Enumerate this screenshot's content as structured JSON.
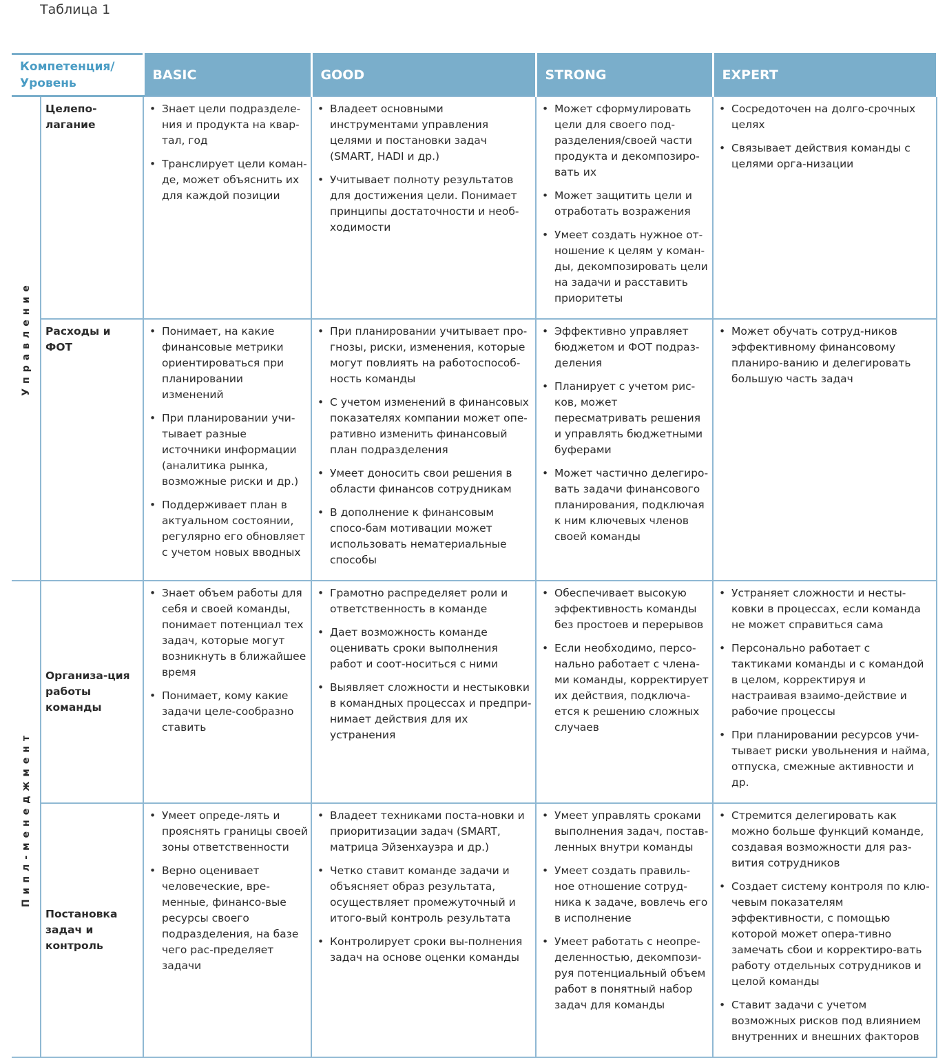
{
  "title": "Таблица 1",
  "header": {
    "corner": "Компетенция/ Уровень",
    "levels": [
      "BASIC",
      "GOOD",
      "STRONG",
      "EXPERT"
    ]
  },
  "groups": [
    {
      "label": "Управление"
    },
    {
      "label": "Пипл-менеджмент"
    }
  ],
  "rows": [
    {
      "label": "Целепо-лагание",
      "cells": [
        [
          "Знает цели подразделе-ния и продукта на квар-тал, год",
          "Транслирует цели коман-де, может объяснить их для каждой позиции"
        ],
        [
          "Владеет основными инструментами управления целями и постановки задач (SMART, HADI и др.)",
          "Учитывает полноту результатов для достижения цели. Понимает принципы достаточности и необ-ходимости"
        ],
        [
          "Может сформулировать цели для своего под-разделения/своей части продукта и декомпозиро-вать их",
          "Может защитить цели и отработать возражения",
          "Умеет создать нужное от-ношение к целям у коман-ды, декомпозировать цели на задачи и расставить приоритеты"
        ],
        [
          "Сосредоточен на долго-срочных целях",
          "Связывает действия команды с целями орга-низации"
        ]
      ]
    },
    {
      "label": "Расходы и ФОТ",
      "cells": [
        [
          "Понимает, на какие финансовые метрики ориентироваться при планировании изменений",
          "При планировании учи-тывает разные источники информации (аналитика рынка, возможные риски и др.)",
          "Поддерживает план в актуальном состоянии, регулярно его обновляет с учетом новых вводных"
        ],
        [
          "При планировании учитывает про-гнозы, риски, изменения, которые могут повлиять на работоспособ-ность команды",
          "С учетом изменений в финансовых показателях компании может опе-ративно изменить финансовый план подразделения",
          "Умеет доносить свои решения в области финансов сотрудникам",
          "В дополнение к финансовым спосо-бам мотивации может использовать нематериальные способы"
        ],
        [
          "Эффективно управляет бюджетом и ФОТ подраз-деления",
          "Планирует с учетом рис-ков, может пересматривать решения и управлять бюджетными буферами",
          "Может частично делегиро-вать задачи финансового планирования, подключая к ним ключевых членов своей команды"
        ],
        [
          "Может обучать сотруд-ников эффективному финансовому планиро-ванию и делегировать большую часть задач"
        ]
      ]
    },
    {
      "label": "Организа-ция работы команды",
      "cells": [
        [
          "Знает объем работы для себя и своей команды, понимает потенциал тех задач, которые могут возникнуть в ближайшее время",
          "Понимает, кому какие задачи целе-сообразно ставить"
        ],
        [
          "Грамотно распределяет роли и ответственность в команде",
          "Дает возможность команде оценивать сроки выполнения работ и соот-носиться с ними",
          "Выявляет сложности и нестыковки в командных процессах и предпри-нимает действия для их устранения"
        ],
        [
          "Обеспечивает высокую эффективность команды без простоев и перерывов",
          "Если необходимо, персо-нально работает с члена-ми команды, корректирует их действия, подключа-ется к решению сложных случаев"
        ],
        [
          "Устраняет сложности и несты-ковки в процессах, если команда не может справиться сама",
          "Персонально работает с тактиками команды и с командой в целом, корректируя и настраивая взаимо-действие и рабочие процессы",
          "При планировании ресурсов учи-тывает риски увольнения и найма, отпуска, смежные активности и др."
        ]
      ]
    },
    {
      "label": "Постановка задач и контроль",
      "cells": [
        [
          "Умеет опреде-лять и прояснять границы своей зоны ответственности",
          "Верно оценивает человеческие, вре-менные, финансо-вые ресурсы своего подразделения, на базе чего рас-пределяет задачи"
        ],
        [
          "Владеет техниками поста-новки и приоритизации задач (SMART, матрица Эйзенхауэра и др.)",
          "Четко ставит команде задачи и объясняет образ результата, осуществляет промежуточный и итого-вый контроль результата",
          "Контролирует сроки вы-полнения задач на основе оценки команды"
        ],
        [
          "Умеет управлять сроками выполнения задач, постав-ленных внутри команды",
          "Умеет создать правиль-ное отношение сотруд-ника к задаче, вовлечь его в исполнение",
          "Умеет работать с неопре-деленностью, декомпози-руя потенциальный объем работ в понятный набор задач для команды"
        ],
        [
          "Стремится делегировать как можно больше функций команде, создавая возможности для раз-вития сотрудников",
          "Создает систему контроля по клю-чевым показателям эффективности, с помощью которой может опера-тивно замечать сбои и корректиро-вать работу отдельных сотрудников и целой команды",
          "Ставит задачи с учетом возможных рисков под влиянием внутренних и внешних факторов"
        ]
      ]
    }
  ],
  "colors": {
    "header_bg": "#7aaecb",
    "corner_text": "#4a9cc4",
    "border": "#8fb8d3"
  }
}
